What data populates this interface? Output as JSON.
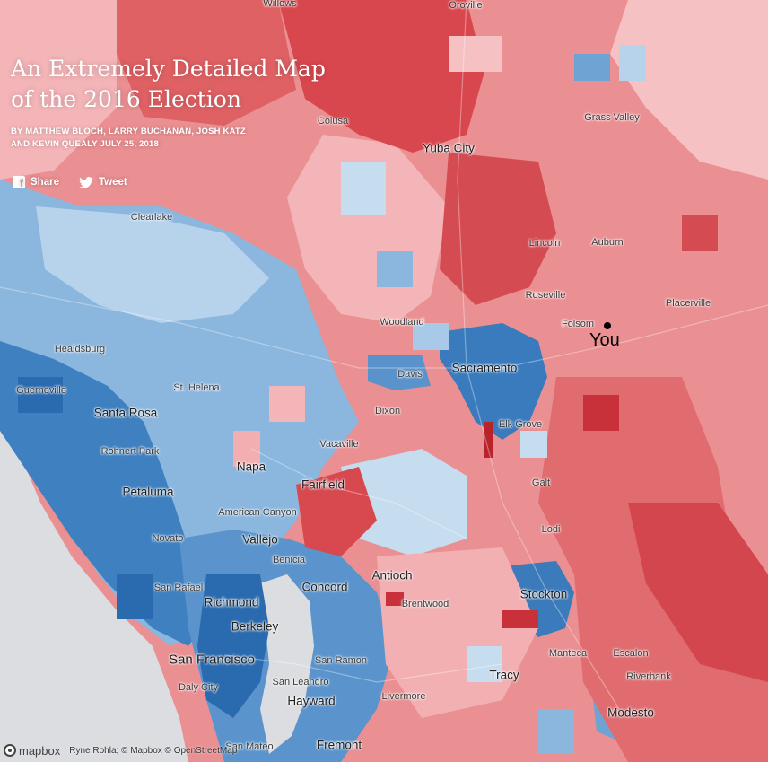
{
  "title_line1": "An Extremely Detailed Map",
  "title_line2": "of the 2016 Election",
  "byline_line1": "By MATTHEW BLOCH, LARRY BUCHANAN, JOSH KATZ",
  "byline_line2": "and KEVIN QUEALY JULY 25, 2018",
  "share": {
    "facebook_label": "Share",
    "twitter_label": "Tweet"
  },
  "you_label": "You",
  "attribution": {
    "logo": "mapbox",
    "text": "Ryne Rohla; © Mapbox © OpenStreetMap"
  },
  "colors": {
    "strong_red": "#d9474e",
    "mid_red": "#ea7d7f",
    "light_red": "#f4b3b6",
    "strong_blue": "#2f74b5",
    "mid_blue": "#6ea3d4",
    "light_blue": "#b7d3ec",
    "water": "#e6e6e8"
  },
  "places": [
    {
      "name": "Willows",
      "tier": "minor"
    },
    {
      "name": "Oroville",
      "tier": "minor"
    },
    {
      "name": "Colusa",
      "tier": "minor"
    },
    {
      "name": "Grass Valley",
      "tier": "minor"
    },
    {
      "name": "Yuba City",
      "tier": "major"
    },
    {
      "name": "Clearlake",
      "tier": "minor"
    },
    {
      "name": "Lincoln",
      "tier": "minor"
    },
    {
      "name": "Auburn",
      "tier": "minor"
    },
    {
      "name": "Roseville",
      "tier": "minor"
    },
    {
      "name": "Placerville",
      "tier": "minor"
    },
    {
      "name": "Woodland",
      "tier": "minor"
    },
    {
      "name": "Folsom",
      "tier": "minor"
    },
    {
      "name": "Healdsburg",
      "tier": "minor"
    },
    {
      "name": "Sacramento",
      "tier": "major"
    },
    {
      "name": "Davis",
      "tier": "minor"
    },
    {
      "name": "Guerneville",
      "tier": "minor"
    },
    {
      "name": "St. Helena",
      "tier": "minor"
    },
    {
      "name": "Dixon",
      "tier": "minor"
    },
    {
      "name": "Santa Rosa",
      "tier": "major"
    },
    {
      "name": "Elk Grove",
      "tier": "minor"
    },
    {
      "name": "Vacaville",
      "tier": "minor"
    },
    {
      "name": "Rohnert Park",
      "tier": "minor"
    },
    {
      "name": "Napa",
      "tier": "major"
    },
    {
      "name": "Fairfield",
      "tier": "major"
    },
    {
      "name": "Galt",
      "tier": "minor"
    },
    {
      "name": "Petaluma",
      "tier": "major"
    },
    {
      "name": "American Canyon",
      "tier": "minor"
    },
    {
      "name": "Lodi",
      "tier": "minor"
    },
    {
      "name": "Novato",
      "tier": "minor"
    },
    {
      "name": "Vallejo",
      "tier": "major"
    },
    {
      "name": "Benicia",
      "tier": "minor"
    },
    {
      "name": "Antioch",
      "tier": "major"
    },
    {
      "name": "San Rafael",
      "tier": "minor"
    },
    {
      "name": "Concord",
      "tier": "major"
    },
    {
      "name": "Stockton",
      "tier": "major"
    },
    {
      "name": "Richmond",
      "tier": "major"
    },
    {
      "name": "Brentwood",
      "tier": "minor"
    },
    {
      "name": "Berkeley",
      "tier": "major"
    },
    {
      "name": "Manteca",
      "tier": "minor"
    },
    {
      "name": "Escalon",
      "tier": "minor"
    },
    {
      "name": "San Francisco",
      "tier": "big"
    },
    {
      "name": "San Ramon",
      "tier": "minor"
    },
    {
      "name": "Tracy",
      "tier": "major"
    },
    {
      "name": "Riverbank",
      "tier": "minor"
    },
    {
      "name": "San Leandro",
      "tier": "minor"
    },
    {
      "name": "Daly City",
      "tier": "minor"
    },
    {
      "name": "Livermore",
      "tier": "minor"
    },
    {
      "name": "Hayward",
      "tier": "major"
    },
    {
      "name": "Modesto",
      "tier": "major"
    },
    {
      "name": "San Mateo",
      "tier": "minor"
    },
    {
      "name": "Fremont",
      "tier": "major"
    }
  ]
}
